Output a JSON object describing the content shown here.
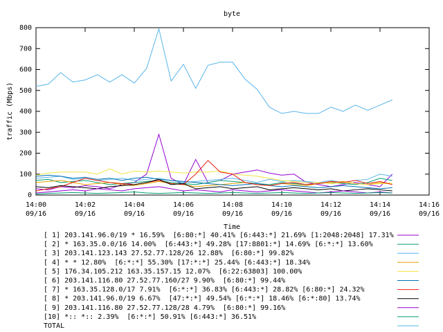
{
  "chart_data": {
    "type": "line",
    "title": "byte",
    "x_label": "Time",
    "y_label": "traffic (Mbps)",
    "x": [
      0,
      0.5,
      1,
      1.5,
      2,
      2.5,
      3,
      3.5,
      4,
      4.5,
      5,
      5.5,
      6,
      6.5,
      7,
      7.5,
      8,
      8.5,
      9,
      9.5,
      10,
      10.5,
      11,
      11.5,
      12,
      12.5,
      13,
      13.5,
      14,
      14.5
    ],
    "xlim": [
      0,
      16
    ],
    "xticks": [
      {
        "value": 0,
        "label": "14:00\n09/16"
      },
      {
        "value": 2,
        "label": "14:02\n09/16"
      },
      {
        "value": 4,
        "label": "14:04\n09/16"
      },
      {
        "value": 6,
        "label": "14:06\n09/16"
      },
      {
        "value": 8,
        "label": "14:08\n09/16"
      },
      {
        "value": 10,
        "label": "14:10\n09/16"
      },
      {
        "value": 12,
        "label": "14:12\n09/16"
      },
      {
        "value": 14,
        "label": "14:14\n09/16"
      },
      {
        "value": 16,
        "label": "14:16\n09/16"
      }
    ],
    "ylim": [
      0,
      800
    ],
    "yticks": [
      0,
      100,
      200,
      300,
      400,
      500,
      600,
      700,
      800
    ],
    "series": [
      {
        "name": "[ 1] 203.141.96.0/19 * 16.59%  [6:80:*] 40.41% [6:443:*] 21.69% [1:2048:2048] 17.31%",
        "color": "#9400d3",
        "values": [
          30,
          25,
          40,
          35,
          45,
          40,
          30,
          50,
          60,
          100,
          290,
          80,
          50,
          170,
          60,
          70,
          100,
          110,
          120,
          105,
          95,
          100,
          60,
          50,
          40,
          50,
          60,
          50,
          40,
          100
        ]
      },
      {
        "name": "[ 2] * 163.35.0.0/16 14.00%  [6:443:*] 49.28% [17:8801:*] 14.69% [6:*:*] 13.60%",
        "color": "#009e73",
        "values": [
          70,
          75,
          60,
          65,
          70,
          60,
          50,
          55,
          60,
          65,
          70,
          60,
          55,
          50,
          60,
          70,
          65,
          60,
          55,
          50,
          60,
          55,
          50,
          55,
          60,
          55,
          50,
          60,
          80,
          70
        ]
      },
      {
        "name": "[ 3] 203.141.123.143 27.52.77.128/26 12.88%  [6:80:*] 99.82%",
        "color": "#56b4e9",
        "values": [
          80,
          85,
          90,
          75,
          80,
          70,
          75,
          80,
          70,
          75,
          80,
          70,
          60,
          65,
          70,
          75,
          80,
          70,
          60,
          75,
          65,
          70,
          65,
          60,
          70,
          60,
          70,
          75,
          100,
          90
        ]
      },
      {
        "name": "[ 4] * * 12.80%  [6:*:*] 55.30% [17:*:*] 25.44% [6:443:*] 18.34%",
        "color": "#e69f00",
        "values": [
          60,
          65,
          70,
          60,
          50,
          55,
          60,
          50,
          45,
          55,
          65,
          55,
          50,
          40,
          45,
          50,
          55,
          60,
          50,
          45,
          55,
          50,
          45,
          55,
          60,
          65,
          55,
          50,
          60,
          55
        ]
      },
      {
        "name": "[ 5] 176.34.105.212 163.35.157.15 12.07%  [6:22:63803] 100.00%",
        "color": "#f0e442",
        "values": [
          95,
          105,
          110,
          110,
          110,
          100,
          125,
          100,
          115,
          110,
          115,
          110,
          105,
          110,
          110,
          115,
          100,
          95,
          90,
          80,
          70,
          65,
          60,
          60,
          55,
          60,
          55,
          50,
          55,
          55
        ]
      },
      {
        "name": "[ 6] 203.141.116.80 27.52.77.160/27 9.90%  [6:80:*] 99.44%",
        "color": "#0072b2",
        "values": [
          90,
          95,
          90,
          80,
          85,
          75,
          80,
          70,
          80,
          85,
          75,
          70,
          65,
          60,
          55,
          50,
          45,
          50,
          55,
          45,
          40,
          45,
          40,
          35,
          40,
          45,
          40,
          35,
          30,
          35
        ]
      },
      {
        "name": "[ 7] * 163.35.128.0/17 7.91%  [6:*:*] 36.83% [6:443:*] 28.82% [6:80:*] 24.32%",
        "color": "#e51e10",
        "values": [
          20,
          30,
          40,
          60,
          80,
          70,
          60,
          55,
          50,
          60,
          70,
          55,
          50,
          100,
          165,
          110,
          100,
          60,
          50,
          45,
          55,
          60,
          50,
          55,
          65,
          60,
          70,
          55,
          65,
          50
        ]
      },
      {
        "name": "[ 8] * 203.141.96.0/19 6.67%  [47:*:*] 49.54% [6:*:*] 18.46% [6:*:80] 13.74%",
        "color": "#000000",
        "values": [
          40,
          35,
          45,
          40,
          35,
          30,
          40,
          45,
          50,
          60,
          75,
          50,
          55,
          30,
          35,
          40,
          30,
          35,
          40,
          25,
          30,
          35,
          30,
          25,
          30,
          20,
          25,
          30,
          25,
          20
        ]
      },
      {
        "name": "[ 9] 203.141.116.80 27.52.77.128/28 4.79%  [6:80:*] 99.16%",
        "color": "#9400d3",
        "values": [
          10,
          15,
          20,
          25,
          20,
          30,
          25,
          20,
          30,
          35,
          40,
          30,
          20,
          25,
          20,
          15,
          25,
          20,
          15,
          20,
          25,
          20,
          15,
          10,
          15,
          20,
          15,
          10,
          15,
          10
        ]
      },
      {
        "name": "[10] *:: *:: 2.39%  [6:*:*] 50.91% [6:443:*] 36.51%",
        "color": "#009e73",
        "values": [
          5,
          8,
          10,
          12,
          10,
          8,
          10,
          12,
          15,
          10,
          8,
          10,
          12,
          10,
          8,
          10,
          12,
          10,
          8,
          10,
          12,
          10,
          8,
          10,
          12,
          10,
          8,
          10,
          12,
          10
        ]
      },
      {
        "name": "TOTAL",
        "color": "#56b4e9",
        "values": [
          520,
          530,
          585,
          540,
          550,
          575,
          540,
          575,
          535,
          605,
          795,
          545,
          625,
          510,
          620,
          635,
          635,
          555,
          505,
          420,
          390,
          400,
          390,
          390,
          420,
          400,
          430,
          405,
          430,
          455
        ]
      }
    ]
  }
}
